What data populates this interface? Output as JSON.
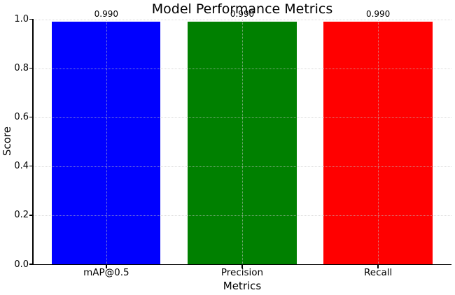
{
  "chart_data": {
    "type": "bar",
    "title": "Model Performance Metrics",
    "xlabel": "Metrics",
    "ylabel": "Score",
    "categories": [
      "mAP@0.5",
      "Precision",
      "Recall"
    ],
    "values": [
      0.99,
      0.99,
      0.99
    ],
    "value_labels": [
      "0.990",
      "0.990",
      "0.990"
    ],
    "bar_colors": [
      "#0000ff",
      "#008000",
      "#ff0000"
    ],
    "ylim": [
      0.0,
      1.0
    ],
    "yticks": [
      0.0,
      0.2,
      0.4,
      0.6,
      0.8,
      1.0
    ],
    "ytick_labels": [
      "0.0",
      "0.2",
      "0.4",
      "0.6",
      "0.8",
      "1.0"
    ],
    "grid": "dotted, both axes, drawn above bars",
    "legend": "none",
    "spines": [
      "left",
      "bottom"
    ]
  }
}
